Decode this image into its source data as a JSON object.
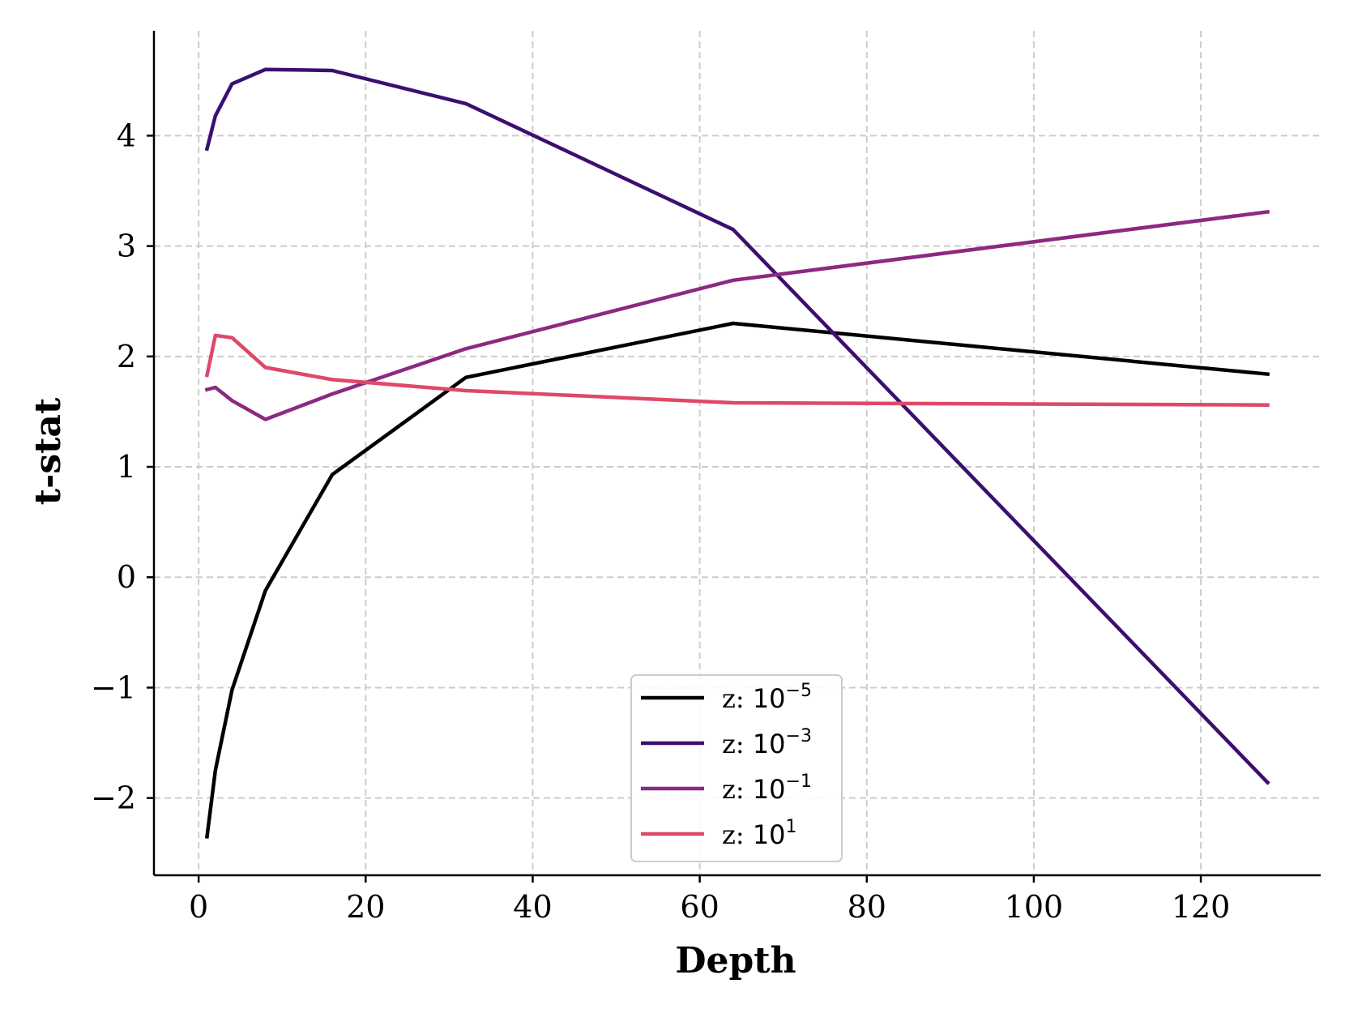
{
  "chart_data": {
    "type": "line",
    "title": "",
    "xlabel": "Depth",
    "ylabel": "t-stat",
    "xlim": [
      -5.35,
      134.35
    ],
    "ylim": [
      -2.7,
      4.95
    ],
    "xticks": [
      0,
      20,
      40,
      60,
      80,
      100,
      120
    ],
    "xtick_labels": [
      "0",
      "20",
      "40",
      "60",
      "80",
      "100",
      "120"
    ],
    "yticks": [
      -2,
      -1,
      0,
      1,
      2,
      3,
      4
    ],
    "ytick_labels": [
      "−2",
      "−1",
      "0",
      "1",
      "2",
      "3",
      "4"
    ],
    "grid": true,
    "legend_position": "lower-center",
    "x": [
      1,
      2,
      4,
      8,
      16,
      32,
      64,
      128
    ],
    "series": [
      {
        "name": "z: 10⁻⁵",
        "prefix": "z: ",
        "base": "10",
        "exp": "−5",
        "color": "#000000",
        "values": [
          -2.35,
          -1.75,
          -1.02,
          -0.12,
          0.93,
          1.81,
          2.3,
          1.84
        ]
      },
      {
        "name": "z: 10⁻³",
        "prefix": "z: ",
        "base": "10",
        "exp": "−3",
        "color": "#3b0f70",
        "values": [
          3.88,
          4.18,
          4.47,
          4.6,
          4.59,
          4.29,
          3.15,
          -1.86
        ]
      },
      {
        "name": "z: 10⁻¹",
        "prefix": "z: ",
        "base": "10",
        "exp": "−1",
        "color": "#8c2981",
        "values": [
          1.7,
          1.72,
          1.6,
          1.43,
          1.66,
          2.07,
          2.69,
          3.31
        ]
      },
      {
        "name": "z: 10¹",
        "prefix": "z: ",
        "base": "10",
        "exp": "1",
        "color": "#de4968",
        "values": [
          1.83,
          2.19,
          2.17,
          1.9,
          1.79,
          1.69,
          1.58,
          1.56
        ]
      }
    ]
  }
}
